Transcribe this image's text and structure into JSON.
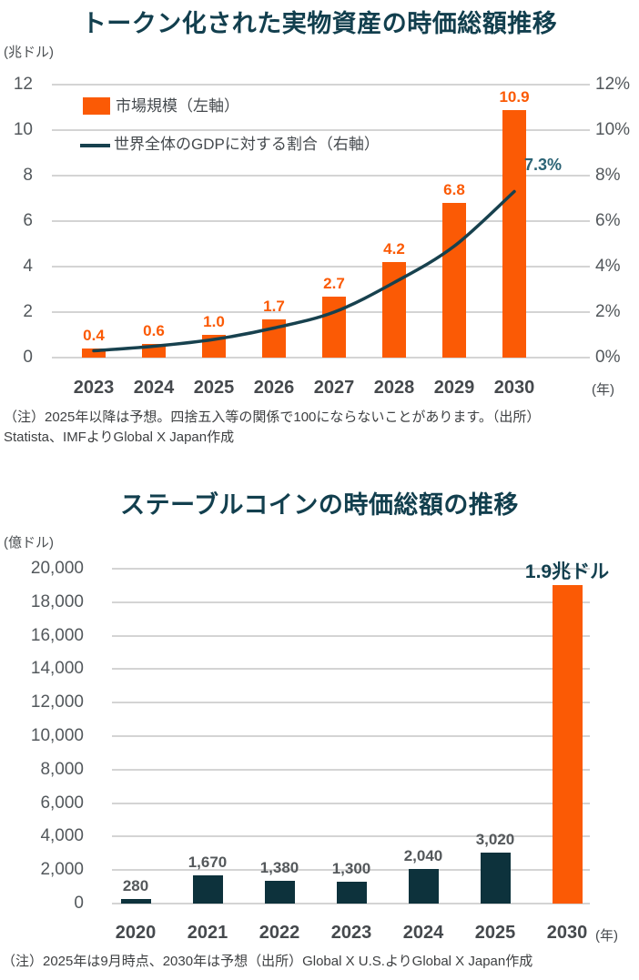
{
  "page_background": "#ffffff",
  "chart_data": [
    {
      "id": "tokenized-rwa",
      "type": "bar+line",
      "title": "トークン化された実物資産の時価総額推移",
      "unit": "(兆ドル)",
      "x_suffix": "(年)",
      "categories": [
        "2023",
        "2024",
        "2025",
        "2026",
        "2027",
        "2028",
        "2029",
        "2030"
      ],
      "series": [
        {
          "name": "市場規模（左軸）",
          "type": "bar",
          "axis": "left",
          "color": "#fb5a05",
          "values": [
            0.4,
            0.6,
            1.0,
            1.7,
            2.7,
            4.2,
            6.8,
            10.9
          ],
          "labels": [
            "0.4",
            "0.6",
            "1.0",
            "1.7",
            "2.7",
            "4.2",
            "6.8",
            "10.9"
          ]
        },
        {
          "name": "世界全体のGDPに対する割合（右軸）",
          "type": "line",
          "axis": "right",
          "color": "#17414e",
          "values": [
            0.3,
            0.5,
            0.8,
            1.3,
            2.0,
            3.3,
            4.9,
            7.3
          ],
          "end_label": "7.3%",
          "end_label_color": "#2b6375"
        }
      ],
      "left_axis": {
        "min": 0,
        "max": 12,
        "step": 2,
        "ticks": [
          "0",
          "2",
          "4",
          "6",
          "8",
          "10",
          "12"
        ]
      },
      "right_axis": {
        "min": 0,
        "max": 12,
        "step": 2,
        "ticks": [
          "0%",
          "2%",
          "4%",
          "6%",
          "8%",
          "10%",
          "12%"
        ]
      },
      "grid": true,
      "legend_position": "top-left-inside",
      "note_lines": [
        "（注）2025年以降は予想。四捨五入等の関係で100にならないことがあります。（出所）",
        "Statista、IMFよりGlobal X Japan作成"
      ]
    },
    {
      "id": "stablecoin",
      "type": "bar",
      "title": "ステーブルコインの時価総額の推移",
      "unit": "(億ドル)",
      "x_suffix": "(年)",
      "categories": [
        "2020",
        "2021",
        "2022",
        "2023",
        "2024",
        "2025",
        "2030"
      ],
      "values": [
        280,
        1670,
        1380,
        1300,
        2040,
        3020,
        19000
      ],
      "labels": [
        "280",
        "1,670",
        "1,380",
        "1,300",
        "2,040",
        "3,020",
        ""
      ],
      "bar_colors": [
        "#0d323c",
        "#0d323c",
        "#0d323c",
        "#0d323c",
        "#0d323c",
        "#0d323c",
        "#fb5a05"
      ],
      "annotation": {
        "text": "1.9兆ドル",
        "color": "#123f4e"
      },
      "left_axis": {
        "min": 0,
        "max": 20000,
        "step": 2000,
        "ticks": [
          "0",
          "2,000",
          "4,000",
          "6,000",
          "8,000",
          "10,000",
          "12,000",
          "14,000",
          "16,000",
          "18,000",
          "20,000"
        ]
      },
      "grid": true,
      "note": "（注）2025年は9月時点、2030年は予想（出所）Global X U.S.よりGlobal X Japan作成"
    }
  ],
  "colors": {
    "title": "#123f4e",
    "axis_text": "#53585c",
    "x_label_text": "#45494d",
    "bar_value_text": "#54585b",
    "note_text": "#3e4042",
    "gridline": "#d4d4d4",
    "orange": "#fb5a05",
    "teal_dark": "#0d323c"
  }
}
